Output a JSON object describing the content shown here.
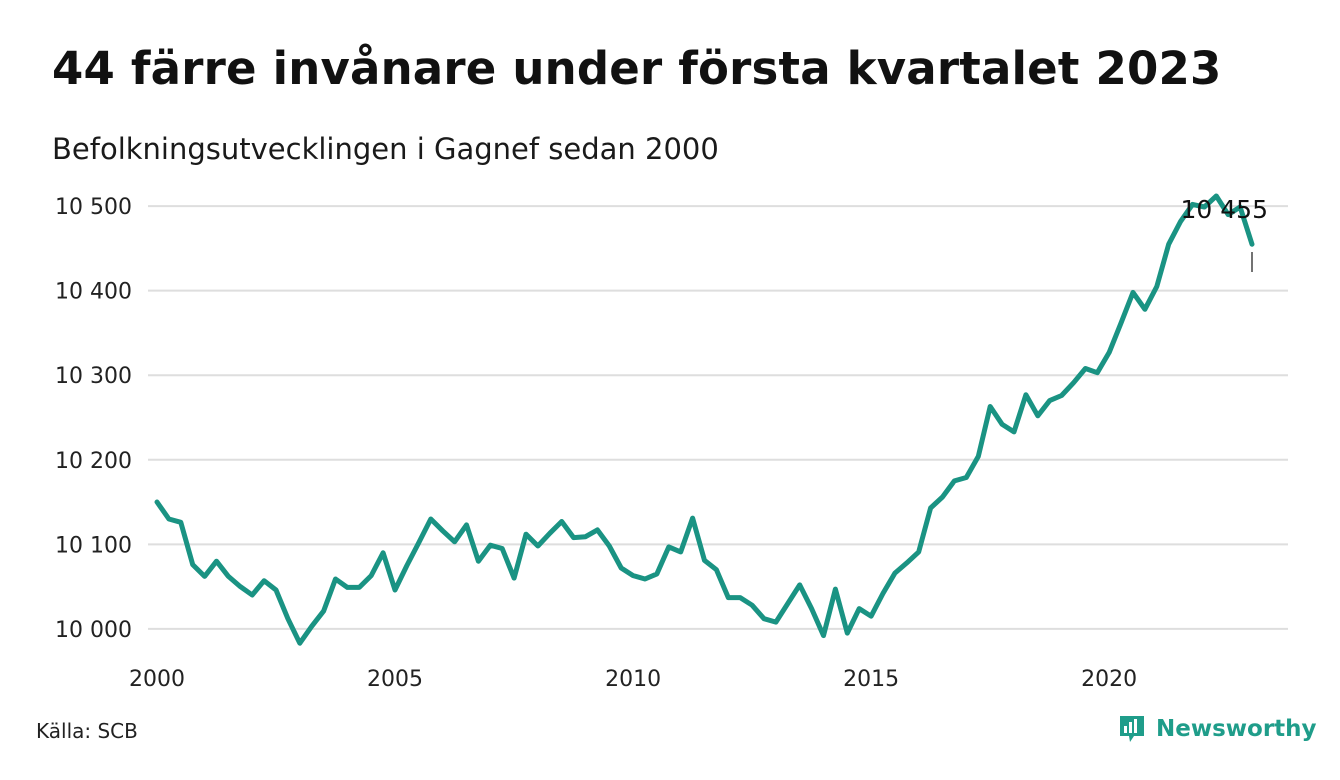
{
  "title": "44 färre invånare under första kvartalet 2023",
  "subtitle": "Befolkningsutvecklingen i Gagnef sedan 2000",
  "source": "Källa: SCB",
  "brand": {
    "name": "Newsworthy",
    "icon": "newsworthy-logo-icon",
    "color": "#1f9d8a"
  },
  "line_color": "#1a9383",
  "chart_data": {
    "type": "line",
    "title": "44 färre invånare under första kvartalet 2023",
    "subtitle": "Befolkningsutvecklingen i Gagnef sedan 2000",
    "xlabel": "",
    "ylabel": "",
    "x_ticks": [
      "2000",
      "2005",
      "2010",
      "2015",
      "2020"
    ],
    "y_ticks": [
      10000,
      10100,
      10200,
      10300,
      10400,
      10500
    ],
    "y_tick_labels": [
      "10 000",
      "10 100",
      "10 200",
      "10 300",
      "10 400",
      "10 500"
    ],
    "ylim": [
      9975,
      10525
    ],
    "xlim": [
      2000.0,
      2023.0
    ],
    "grid": "horizontal",
    "end_label": "10 455",
    "series": [
      {
        "x": [
          2000.0,
          2000.25,
          2000.5,
          2000.75,
          2001.0,
          2001.25,
          2001.5,
          2001.75,
          2002.0,
          2002.25,
          2002.5,
          2002.75,
          2003.0,
          2003.25,
          2003.5,
          2003.75,
          2004.0,
          2004.25,
          2004.5,
          2004.75,
          2005.0,
          2005.25,
          2005.5,
          2005.75,
          2006.0,
          2006.25,
          2006.5,
          2006.75,
          2007.0,
          2007.25,
          2007.5,
          2007.75,
          2008.0,
          2008.25,
          2008.5,
          2008.75,
          2009.0,
          2009.25,
          2009.5,
          2009.75,
          2010.0,
          2010.25,
          2010.5,
          2010.75,
          2011.0,
          2011.25,
          2011.5,
          2011.75,
          2012.0,
          2012.25,
          2012.5,
          2012.75,
          2013.0,
          2013.25,
          2013.5,
          2013.75,
          2014.0,
          2014.25,
          2014.5,
          2014.75,
          2015.0,
          2015.25,
          2015.5,
          2015.75,
          2016.0,
          2016.25,
          2016.5,
          2016.75,
          2017.0,
          2017.25,
          2017.5,
          2017.75,
          2018.0,
          2018.25,
          2018.5,
          2018.75,
          2019.0,
          2019.25,
          2019.5,
          2019.75,
          2020.0,
          2020.25,
          2020.5,
          2020.75,
          2021.0,
          2021.25,
          2021.5,
          2021.75,
          2022.0,
          2022.25,
          2022.5,
          2022.75,
          2023.0
        ],
        "values": [
          10150,
          10130,
          10126,
          10076,
          10062,
          10080,
          10062,
          10050,
          10040,
          10057,
          10046,
          10012,
          9983,
          10003,
          10021,
          10059,
          10049,
          10049,
          10063,
          10090,
          10046,
          10075,
          10102,
          10130,
          10116,
          10103,
          10123,
          10080,
          10099,
          10095,
          10060,
          10112,
          10098,
          10113,
          10127,
          10108,
          10109,
          10117,
          10098,
          10072,
          10063,
          10059,
          10065,
          10097,
          10091,
          10131,
          10081,
          10070,
          10037,
          10037,
          10028,
          10012,
          10008,
          10030,
          10052,
          10024,
          9992,
          10047,
          9995,
          10024,
          10015,
          10042,
          10066,
          10078,
          10091,
          10143,
          10156,
          10175,
          10179,
          10204,
          10263,
          10242,
          10233,
          10277,
          10252,
          10270,
          10276,
          10291,
          10308,
          10303,
          10327,
          10362,
          10398,
          10378,
          10405,
          10455,
          10482,
          10502,
          10499,
          10512,
          10490,
          10499,
          10455
        ]
      }
    ]
  }
}
